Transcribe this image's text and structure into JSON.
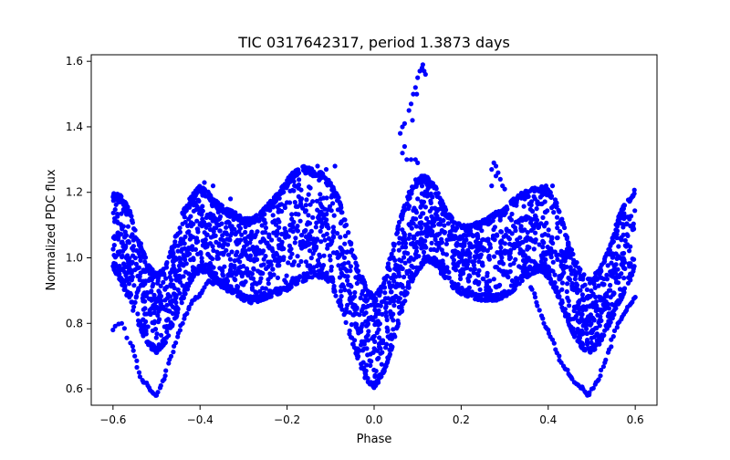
{
  "chart_data": {
    "type": "scatter",
    "title": "TIC 0317642317, period 1.3873 days",
    "xlabel": "Phase",
    "ylabel": "Normalized PDC flux",
    "xlim": [
      -0.65,
      0.65
    ],
    "ylim": [
      0.55,
      1.62
    ],
    "xticks": [
      -0.6,
      -0.4,
      -0.2,
      0.0,
      0.2,
      0.4,
      0.6
    ],
    "xtick_labels": [
      "−0.6",
      "−0.4",
      "−0.2",
      "0.0",
      "0.2",
      "0.4",
      "0.6"
    ],
    "yticks": [
      0.6,
      0.8,
      1.0,
      1.2,
      1.4,
      1.6
    ],
    "ytick_labels": [
      "0.6",
      "0.8",
      "1.0",
      "1.2",
      "1.4",
      "1.6"
    ],
    "marker_color": "#0000ff",
    "grid": false,
    "series": [
      {
        "name": "light-curve-envelope",
        "description_values": "upper and lower flux bounds of the dense point cloud versus phase",
        "x": [
          -0.6,
          -0.58,
          -0.56,
          -0.54,
          -0.52,
          -0.5,
          -0.48,
          -0.46,
          -0.44,
          -0.42,
          -0.4,
          -0.38,
          -0.36,
          -0.34,
          -0.32,
          -0.3,
          -0.28,
          -0.26,
          -0.24,
          -0.22,
          -0.2,
          -0.18,
          -0.16,
          -0.14,
          -0.12,
          -0.1,
          -0.08,
          -0.06,
          -0.04,
          -0.02,
          0.0,
          0.02,
          0.04,
          0.06,
          0.08,
          0.1,
          0.12,
          0.14,
          0.16,
          0.18,
          0.2,
          0.22,
          0.24,
          0.26,
          0.28,
          0.3,
          0.32,
          0.34,
          0.36,
          0.38,
          0.4,
          0.42,
          0.44,
          0.46,
          0.48,
          0.5,
          0.52,
          0.54,
          0.56,
          0.58,
          0.6
        ],
        "upper": [
          1.2,
          1.19,
          1.14,
          1.06,
          0.98,
          0.95,
          0.97,
          1.05,
          1.14,
          1.19,
          1.22,
          1.2,
          1.17,
          1.15,
          1.14,
          1.12,
          1.12,
          1.14,
          1.17,
          1.2,
          1.24,
          1.27,
          1.28,
          1.27,
          1.26,
          1.23,
          1.18,
          1.08,
          0.98,
          0.92,
          0.88,
          0.92,
          1.02,
          1.12,
          1.2,
          1.25,
          1.25,
          1.22,
          1.16,
          1.12,
          1.1,
          1.1,
          1.11,
          1.12,
          1.14,
          1.15,
          1.18,
          1.2,
          1.21,
          1.22,
          1.21,
          1.17,
          1.08,
          1.0,
          0.95,
          0.94,
          0.97,
          1.03,
          1.12,
          1.18,
          1.21
        ],
        "lower": [
          0.97,
          0.92,
          0.86,
          0.79,
          0.73,
          0.71,
          0.74,
          0.8,
          0.87,
          0.93,
          0.96,
          0.95,
          0.92,
          0.9,
          0.89,
          0.87,
          0.86,
          0.87,
          0.88,
          0.89,
          0.9,
          0.92,
          0.93,
          0.94,
          0.94,
          0.92,
          0.86,
          0.78,
          0.7,
          0.63,
          0.6,
          0.64,
          0.72,
          0.82,
          0.91,
          0.96,
          0.99,
          0.98,
          0.94,
          0.91,
          0.89,
          0.88,
          0.87,
          0.87,
          0.87,
          0.88,
          0.9,
          0.93,
          0.95,
          0.96,
          0.94,
          0.89,
          0.82,
          0.76,
          0.72,
          0.71,
          0.74,
          0.79,
          0.85,
          0.91,
          0.96
        ]
      },
      {
        "name": "eclipse-dip-tracks",
        "description_values": "sparse lower tracks of deeper points near phase ±0.5",
        "points": [
          [
            -0.6,
            0.78
          ],
          [
            -0.58,
            0.8
          ],
          [
            -0.56,
            0.74
          ],
          [
            -0.55,
            0.7
          ],
          [
            -0.54,
            0.65
          ],
          [
            -0.53,
            0.62
          ],
          [
            -0.52,
            0.61
          ],
          [
            -0.51,
            0.59
          ],
          [
            -0.5,
            0.58
          ],
          [
            -0.49,
            0.61
          ],
          [
            -0.48,
            0.64
          ],
          [
            -0.47,
            0.69
          ],
          [
            -0.46,
            0.73
          ],
          [
            -0.45,
            0.77
          ],
          [
            -0.44,
            0.8
          ],
          [
            -0.43,
            0.83
          ],
          [
            -0.42,
            0.86
          ],
          [
            -0.41,
            0.88
          ],
          [
            -0.4,
            0.89
          ],
          [
            -0.39,
            0.91
          ],
          [
            -0.38,
            0.93
          ],
          [
            -0.37,
            0.92
          ],
          [
            0.36,
            0.91
          ],
          [
            0.37,
            0.88
          ],
          [
            0.38,
            0.84
          ],
          [
            0.39,
            0.8
          ],
          [
            0.4,
            0.78
          ],
          [
            0.41,
            0.75
          ],
          [
            0.42,
            0.71
          ],
          [
            0.43,
            0.68
          ],
          [
            0.44,
            0.66
          ],
          [
            0.45,
            0.64
          ],
          [
            0.46,
            0.62
          ],
          [
            0.47,
            0.61
          ],
          [
            0.48,
            0.6
          ],
          [
            0.49,
            0.58
          ],
          [
            0.5,
            0.6
          ],
          [
            0.51,
            0.62
          ],
          [
            0.52,
            0.64
          ],
          [
            0.53,
            0.68
          ],
          [
            0.54,
            0.72
          ],
          [
            0.55,
            0.76
          ],
          [
            0.56,
            0.8
          ],
          [
            0.57,
            0.82
          ],
          [
            0.58,
            0.84
          ],
          [
            0.59,
            0.86
          ],
          [
            0.6,
            0.88
          ]
        ]
      },
      {
        "name": "flare-points",
        "description_values": "outlier points rising above the envelope",
        "points": [
          [
            0.06,
            1.38
          ],
          [
            0.065,
            1.4
          ],
          [
            0.07,
            1.41
          ],
          [
            0.08,
            1.45
          ],
          [
            0.085,
            1.47
          ],
          [
            0.09,
            1.5
          ],
          [
            0.095,
            1.52
          ],
          [
            0.1,
            1.55
          ],
          [
            0.105,
            1.57
          ],
          [
            0.11,
            1.58
          ],
          [
            0.112,
            1.59
          ],
          [
            0.115,
            1.57
          ],
          [
            0.118,
            1.56
          ],
          [
            0.098,
            1.5
          ],
          [
            0.088,
            1.42
          ],
          [
            0.065,
            1.32
          ],
          [
            0.07,
            1.34
          ],
          [
            0.075,
            1.3
          ],
          [
            0.085,
            1.3
          ],
          [
            0.095,
            1.3
          ],
          [
            0.1,
            1.29
          ],
          [
            0.27,
            1.27
          ],
          [
            0.275,
            1.29
          ],
          [
            0.28,
            1.28
          ],
          [
            0.285,
            1.26
          ],
          [
            0.29,
            1.24
          ],
          [
            0.295,
            1.22
          ],
          [
            0.3,
            1.21
          ],
          [
            0.28,
            1.25
          ],
          [
            0.27,
            1.22
          ],
          [
            -0.11,
            1.27
          ],
          [
            -0.09,
            1.28
          ],
          [
            -0.13,
            1.28
          ],
          [
            -0.15,
            1.27
          ],
          [
            -0.39,
            1.23
          ],
          [
            -0.37,
            1.22
          ],
          [
            -0.33,
            1.18
          ],
          [
            0.395,
            1.22
          ],
          [
            0.41,
            1.22
          ]
        ]
      }
    ]
  }
}
